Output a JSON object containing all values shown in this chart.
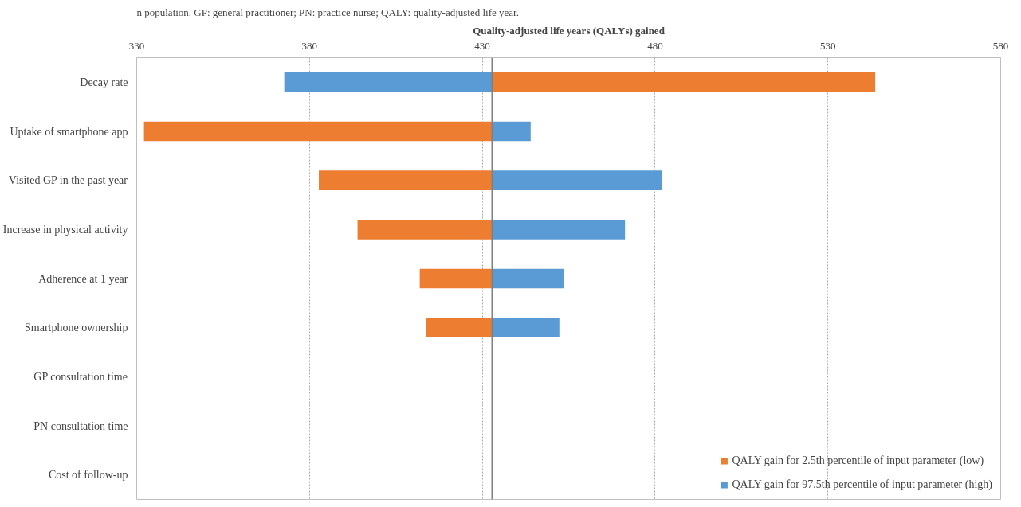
{
  "chart_data": {
    "type": "bar",
    "orientation": "horizontal",
    "title": null,
    "annotations": [
      "n population. GP: general practitioner; PN: practice nurse; QALY: quality-adjusted life year."
    ],
    "xlabel": "Quality-adjusted life years (QALYs) gained",
    "categories": [
      "Decay rate",
      "Uptake of smartphone app",
      "Visited GP in the past year",
      "Increase in physical activity",
      "Adherence at 1 year",
      "Smartphone ownership",
      "GP consultation time",
      "PN consultation time",
      "Cost of follow-up"
    ],
    "series": [
      {
        "name": "QALY gain for 2.5th percentile of input parameter (low)",
        "color": "#ed7d31",
        "base": [
          432.8,
          432.8,
          432.8,
          432.8,
          432.8,
          432.8,
          null,
          null,
          null
        ],
        "values": [
          110.9,
          -100.7,
          -50.1,
          -38.9,
          -20.9,
          -19.2,
          null,
          null,
          null
        ]
      },
      {
        "name": "QALY gain for 97.5th percentile of input parameter (high)",
        "color": "#5b9bd5",
        "base": [
          432.8,
          432.8,
          432.8,
          432.8,
          432.8,
          432.8,
          432.8,
          432.8,
          432.8
        ],
        "values": [
          -60.1,
          11.2,
          49.2,
          38.5,
          20.7,
          19.5,
          0.3,
          0.3,
          0.3
        ]
      }
    ],
    "xlim": [
      330,
      580
    ],
    "xticks": [
      330,
      380,
      430,
      480,
      530,
      580
    ],
    "ref_lines": [
      {
        "axis": "x",
        "value": 432.8,
        "label": null,
        "color": "#808080"
      }
    ],
    "grid": "x",
    "legend": "bottom right"
  }
}
